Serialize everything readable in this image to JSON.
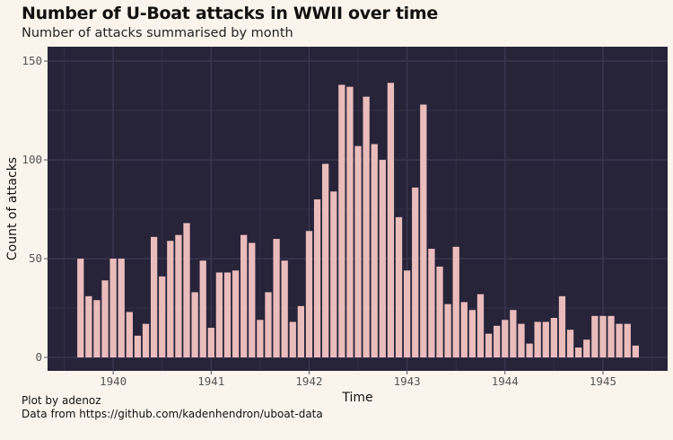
{
  "chart_data": {
    "type": "bar",
    "title": "Number of U-Boat attacks in WWII over time",
    "subtitle": "Number of attacks summarised by month",
    "xlabel": "Time",
    "ylabel": "Count of attacks",
    "caption": [
      "Plot by adenoz",
      "Data from https://github.com/kadenhendron/uboat-data"
    ],
    "x_start": "1939-09",
    "x_end": "1945-05",
    "x_ticks": [
      "1940",
      "1941",
      "1942",
      "1943",
      "1944",
      "1945"
    ],
    "y_ticks": [
      0,
      50,
      100,
      150
    ],
    "xlim": [
      1939.33,
      1945.66
    ],
    "ylim": [
      -6.8,
      157.3
    ],
    "grid": true,
    "colors": {
      "background": "#fbf4ec",
      "panel": "#272439",
      "grid": "#3a3650",
      "bar": "#ebbcbc"
    },
    "categories": [
      "1939-09",
      "1939-10",
      "1939-11",
      "1939-12",
      "1940-01",
      "1940-02",
      "1940-03",
      "1940-04",
      "1940-05",
      "1940-06",
      "1940-07",
      "1940-08",
      "1940-09",
      "1940-10",
      "1940-11",
      "1940-12",
      "1941-01",
      "1941-02",
      "1941-03",
      "1941-04",
      "1941-05",
      "1941-06",
      "1941-07",
      "1941-08",
      "1941-09",
      "1941-10",
      "1941-11",
      "1941-12",
      "1942-01",
      "1942-02",
      "1942-03",
      "1942-04",
      "1942-05",
      "1942-06",
      "1942-07",
      "1942-08",
      "1942-09",
      "1942-10",
      "1942-11",
      "1942-12",
      "1943-01",
      "1943-02",
      "1943-03",
      "1943-04",
      "1943-05",
      "1943-06",
      "1943-07",
      "1943-08",
      "1943-09",
      "1943-10",
      "1943-11",
      "1943-12",
      "1944-01",
      "1944-02",
      "1944-03",
      "1944-04",
      "1944-05",
      "1944-06",
      "1944-07",
      "1944-08",
      "1944-09",
      "1944-10",
      "1944-11",
      "1944-12",
      "1945-01",
      "1945-02",
      "1945-03",
      "1945-04",
      "1945-05"
    ],
    "values": [
      50,
      31,
      29,
      39,
      50,
      50,
      23,
      11,
      17,
      61,
      41,
      59,
      62,
      68,
      33,
      49,
      15,
      43,
      43,
      44,
      62,
      58,
      19,
      33,
      60,
      49,
      18,
      26,
      64,
      80,
      98,
      84,
      138,
      137,
      107,
      132,
      108,
      100,
      139,
      71,
      44,
      86,
      128,
      55,
      46,
      27,
      56,
      28,
      24,
      32,
      12,
      16,
      19,
      24,
      17,
      7,
      18,
      18,
      20,
      31,
      14,
      5,
      9,
      21,
      21,
      21,
      17,
      17,
      6
    ]
  }
}
